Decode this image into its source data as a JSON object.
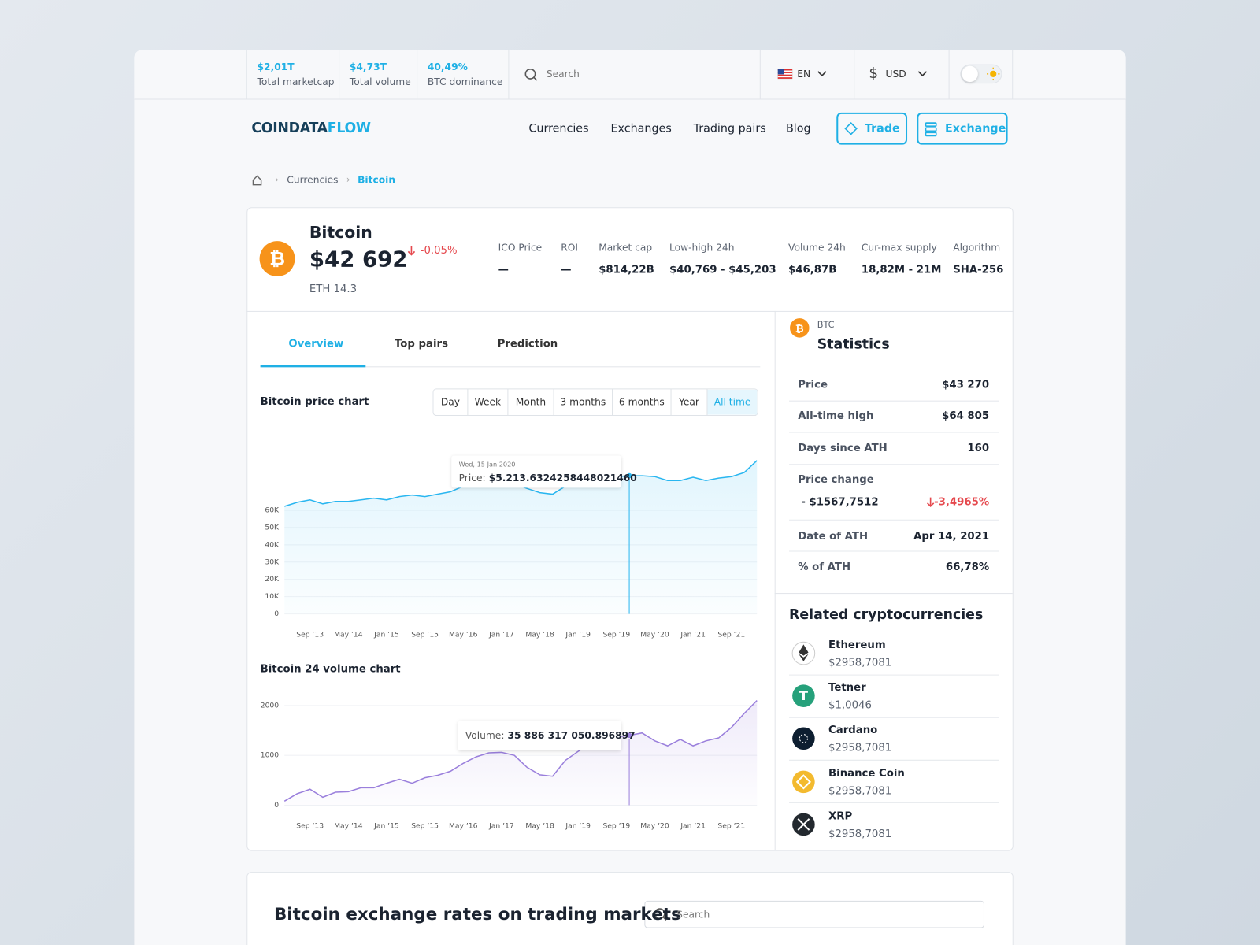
{
  "topbar": {
    "stats": [
      {
        "value": "$2,01T",
        "label": "Total marketcap"
      },
      {
        "value": "$4,73T",
        "label": "Total volume"
      },
      {
        "value": "40,49%",
        "label": "BTC dominance"
      }
    ],
    "search_placeholder": "Search",
    "language": "EN",
    "currency": "USD"
  },
  "nav": {
    "logo_a": "COINDATA",
    "logo_b": "FLOW",
    "links": [
      "Currencies",
      "Exchanges",
      "Trading pairs",
      "Blog"
    ],
    "buttons": [
      "Trade",
      "Exchange"
    ]
  },
  "breadcrumb": [
    "Currencies",
    "Bitcoin"
  ],
  "coin": {
    "name": "Bitcoin",
    "price": "$42 692",
    "change": "-0.05%",
    "eth": "ETH 14.3",
    "metrics": [
      {
        "label": "ICO Price",
        "value": "—"
      },
      {
        "label": "ROI",
        "value": "—"
      },
      {
        "label": "Market cap",
        "value": "$814,22B"
      },
      {
        "label": "Low-high 24h",
        "value": "$40,769 - $45,203"
      },
      {
        "label": "Volume 24h",
        "value": "$46,87B"
      },
      {
        "label": "Cur-max supply",
        "value": "18,82M - 21M"
      },
      {
        "label": "Algorithm",
        "value": "SHA-256"
      }
    ]
  },
  "tabs": [
    "Overview",
    "Top pairs",
    "Prediction"
  ],
  "ranges": [
    "Day",
    "Week",
    "Month",
    "3 months",
    "6 months",
    "Year",
    "All time"
  ],
  "chart_data": [
    {
      "type": "line",
      "title": "Bitcoin price chart",
      "color": "#29b6f0",
      "grid": true,
      "categories": [
        null,
        null,
        "Sep ’13",
        null,
        null,
        "May ’14",
        null,
        null,
        "Jan ’15",
        null,
        null,
        "Sep ’15",
        null,
        null,
        "May ’16",
        null,
        null,
        "Jan ’17",
        null,
        null,
        "May ’18",
        null,
        null,
        "Jan ’19",
        null,
        null,
        "Sep ’19",
        null,
        null,
        "May ’20",
        null,
        null,
        "Jan ’21",
        null,
        null,
        "Sep ’21",
        null,
        null
      ],
      "values": [
        62300,
        64600,
        66000,
        63700,
        65100,
        65100,
        66000,
        67000,
        66000,
        67900,
        68800,
        67900,
        69300,
        70700,
        73900,
        74900,
        76300,
        77200,
        75300,
        72600,
        70200,
        69300,
        73900,
        76300,
        77700,
        79100,
        79500,
        80000,
        80000,
        79500,
        77200,
        77200,
        79100,
        77200,
        78600,
        79500,
        81800,
        88800
      ],
      "ylim": [
        0,
        90000
      ],
      "yticks": [
        0,
        {
          "value": 10000,
          "label": "10K"
        },
        {
          "value": 20000,
          "label": "20K"
        },
        {
          "value": 30000,
          "label": "30K"
        },
        {
          "value": 40000,
          "label": "40K"
        },
        {
          "value": 50000,
          "label": "50K"
        },
        {
          "value": 60000,
          "label": "60K"
        }
      ],
      "tooltip": {
        "date": "Wed, 15 Jan 2020",
        "label": "Price:",
        "value": "$5.213.6324258448021460"
      }
    },
    {
      "type": "line",
      "title": "Bitcoin 24 volume chart",
      "color": "#9a7fdc",
      "grid": true,
      "categories": [
        null,
        null,
        "Sep ’13",
        null,
        null,
        "May ’14",
        null,
        null,
        "Jan ’15",
        null,
        null,
        "Sep ’15",
        null,
        null,
        "May ’16",
        null,
        null,
        "Jan ’17",
        null,
        null,
        "May ’18",
        null,
        null,
        "Jan ’19",
        null,
        null,
        "Sep ’19",
        null,
        null,
        "May ’20",
        null,
        null,
        "Jan ’21",
        null,
        null,
        "Sep ’21",
        null,
        null
      ],
      "values": [
        80,
        230,
        320,
        160,
        260,
        270,
        350,
        350,
        440,
        520,
        440,
        550,
        600,
        680,
        840,
        970,
        1050,
        1060,
        1000,
        760,
        610,
        580,
        900,
        1080,
        1240,
        1320,
        1370,
        1400,
        1450,
        1290,
        1190,
        1320,
        1190,
        1290,
        1350,
        1560,
        1840,
        2100
      ],
      "ylim": [
        0,
        2100
      ],
      "yticks": [
        0,
        1000,
        2000
      ],
      "tooltip": {
        "label": "Volume:",
        "value": "35 886 317 050.896897"
      }
    }
  ],
  "statistics": {
    "symbol": "BTC",
    "title": "Statistics",
    "rows": [
      {
        "label": "Price",
        "value": "$43 270"
      },
      {
        "label": "All-time high",
        "value": "$64 805"
      },
      {
        "label": "Days since ATH",
        "value": "160"
      }
    ],
    "price_change": {
      "label": "Price change",
      "value": "- $1567,7512",
      "percent": "-3,4965%"
    },
    "rows_after": [
      {
        "label": "Date of ATH",
        "value": "Apr 14, 2021"
      },
      {
        "label": "% of ATH",
        "value": "66,78%"
      }
    ]
  },
  "related": {
    "title": "Related cryptocurrencies",
    "items": [
      {
        "name": "Ethereum",
        "price": "$2958,7081"
      },
      {
        "name": "Tetner",
        "price": "$1,0046"
      },
      {
        "name": "Cardano",
        "price": "$2958,7081"
      },
      {
        "name": "Binance Coin",
        "price": "$2958,7081"
      },
      {
        "name": "XRP",
        "price": "$2958,7081"
      }
    ]
  },
  "markets": {
    "title": "Bitcoin exchange rates on trading markets",
    "search_placeholder": "Search"
  }
}
